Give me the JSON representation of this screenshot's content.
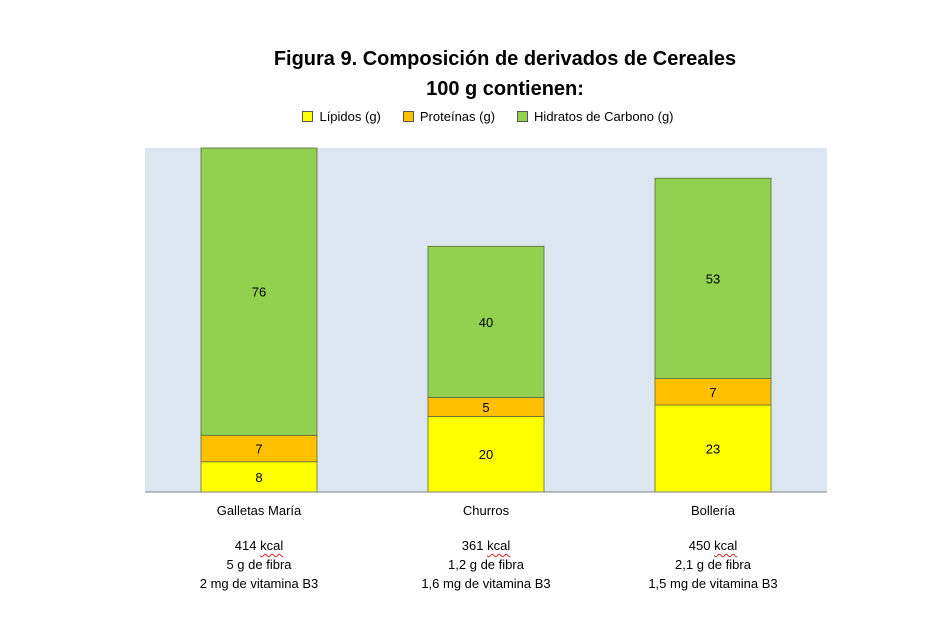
{
  "chart_data": {
    "type": "bar",
    "stacked": true,
    "title": "Figura 9. Composición de derivados de Cereales",
    "subtitle": "100 g contienen:",
    "categories": [
      "Galletas María",
      "Churros",
      "Bollería"
    ],
    "series": [
      {
        "name": "Lípidos (g)",
        "color": "#ffff00",
        "values": [
          8,
          20,
          23
        ]
      },
      {
        "name": "Proteínas (g)",
        "color": "#ffc000",
        "values": [
          7,
          5,
          7
        ]
      },
      {
        "name": "Hidratos de Carbono (g)",
        "color": "#92d050",
        "values": [
          76,
          40,
          53
        ]
      }
    ],
    "ylim": [
      0,
      91
    ],
    "legend": "top",
    "plot_background": "#dce6f0",
    "grid": false
  },
  "notes": [
    {
      "kcal_num": "414",
      "kcal_unit": "kcal",
      "fibra": "5 g de fibra",
      "vitamina": "2 mg de vitamina B3"
    },
    {
      "kcal_num": "361",
      "kcal_unit": "kcal",
      "fibra": "1,2 g de fibra",
      "vitamina": "1,6 mg de vitamina B3"
    },
    {
      "kcal_num": "450",
      "kcal_unit": "kcal",
      "fibra": "2,1 g de fibra",
      "vitamina": "1,5 mg de vitamina B3"
    }
  ]
}
